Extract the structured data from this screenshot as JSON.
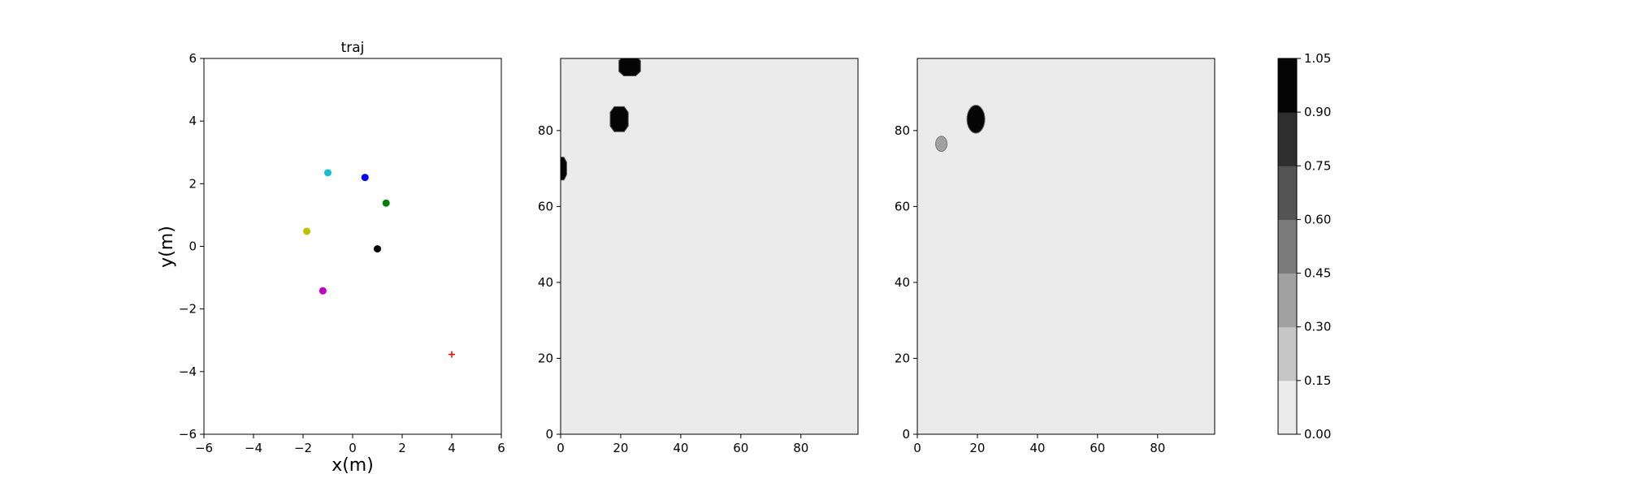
{
  "chart_data": [
    {
      "type": "scatter",
      "title": "traj",
      "xlabel": "x(m)",
      "ylabel": "y(m)",
      "xlim": [
        -6,
        6
      ],
      "ylim": [
        -6,
        6
      ],
      "xticks": [
        -6,
        -4,
        -2,
        0,
        2,
        4,
        6
      ],
      "yticks": [
        -6,
        -4,
        -2,
        0,
        2,
        4,
        6
      ],
      "grid": false,
      "points": [
        {
          "x": -1.0,
          "y": 2.35,
          "color": "#17becf",
          "marker": "circle"
        },
        {
          "x": 0.5,
          "y": 2.2,
          "color": "#0000ff",
          "marker": "circle"
        },
        {
          "x": 1.35,
          "y": 1.38,
          "color": "#008000",
          "marker": "circle"
        },
        {
          "x": -1.85,
          "y": 0.48,
          "color": "#bfbf00",
          "marker": "circle"
        },
        {
          "x": 1.0,
          "y": -0.08,
          "color": "#000000",
          "marker": "circle"
        },
        {
          "x": -1.2,
          "y": -1.42,
          "color": "#bf00bf",
          "marker": "circle"
        },
        {
          "x": 4.0,
          "y": -3.45,
          "color": "#ff0000",
          "marker": "plus"
        }
      ]
    },
    {
      "type": "heatmap",
      "xlim": [
        0,
        99
      ],
      "ylim": [
        0,
        99
      ],
      "xticks": [
        0,
        20,
        40,
        60,
        80
      ],
      "yticks": [
        0,
        20,
        40,
        60,
        80
      ],
      "background_value": 0.05,
      "blobs": [
        {
          "cx": 23,
          "cy": 97,
          "rx": 3.6,
          "ry": 2.6,
          "value": 1.0,
          "shape": "octagon"
        },
        {
          "cx": 19.5,
          "cy": 83,
          "rx": 3.0,
          "ry": 3.3,
          "value": 1.0,
          "shape": "octagon"
        },
        {
          "cx": 0,
          "cy": 70,
          "rx": 2.0,
          "ry": 3.0,
          "value": 1.0,
          "shape": "octagon"
        }
      ]
    },
    {
      "type": "heatmap",
      "xlim": [
        0,
        99
      ],
      "ylim": [
        0,
        99
      ],
      "xticks": [
        0,
        20,
        40,
        60,
        80
      ],
      "yticks": [
        0,
        20,
        40,
        60,
        80
      ],
      "background_value": 0.05,
      "blobs": [
        {
          "cx": 19.5,
          "cy": 83,
          "rx": 3.0,
          "ry": 3.7,
          "value": 1.0,
          "shape": "ellipse"
        },
        {
          "cx": 8,
          "cy": 76.5,
          "rx": 1.9,
          "ry": 2.0,
          "value": 0.35,
          "shape": "ellipse"
        }
      ]
    }
  ],
  "colorbar": {
    "ticks": [
      "0.00",
      "0.15",
      "0.30",
      "0.45",
      "0.60",
      "0.75",
      "0.90",
      "1.05"
    ],
    "colors": [
      "#ebebeb",
      "#c6c6c6",
      "#a1a1a1",
      "#7b7b7b",
      "#545454",
      "#2e2e2e",
      "#050505"
    ]
  }
}
